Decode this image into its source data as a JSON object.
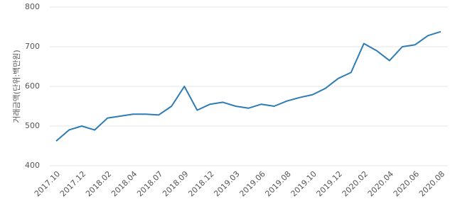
{
  "chart_data": {
    "type": "line",
    "y_label": "거래금액(단위:백만원)",
    "categories": [
      "2017.10",
      null,
      "2017.12",
      null,
      "2018.02",
      null,
      "2018.04",
      null,
      "2018.07",
      null,
      "2018.09",
      null,
      "2018.12",
      null,
      "2019.03",
      null,
      "2019.06",
      null,
      "2019.08",
      null,
      "2019.10",
      null,
      "2019.12",
      null,
      "2020.02",
      null,
      "2020.04",
      null,
      "2020.06",
      null,
      "2020.08"
    ],
    "series": [
      {
        "name": "거래금액",
        "color": "#2e7cb5",
        "values": [
          462,
          490,
          500,
          490,
          520,
          525,
          530,
          530,
          528,
          550,
          600,
          540,
          555,
          560,
          550,
          545,
          555,
          550,
          563,
          572,
          579,
          595,
          620,
          635,
          708,
          690,
          665,
          700,
          705,
          728,
          738
        ]
      }
    ],
    "ylim": [
      400,
      800
    ],
    "yticks": [
      400,
      500,
      600,
      700,
      800
    ],
    "grid": true
  }
}
